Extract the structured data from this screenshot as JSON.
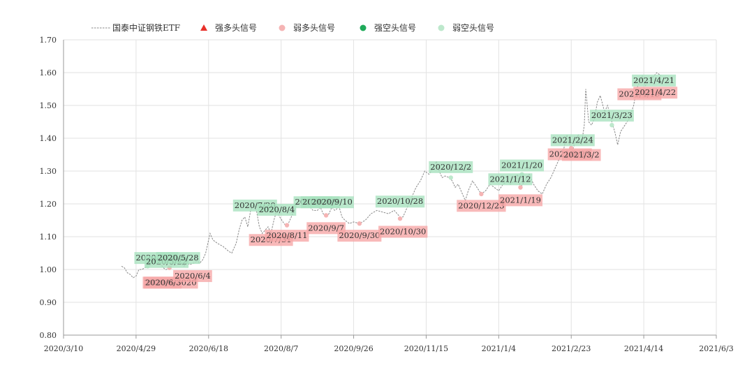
{
  "chart_data": {
    "type": "line",
    "legend": {
      "placement": "top-left",
      "items": [
        {
          "label": "国泰中证钢铁ETF",
          "marker": "dashed-line",
          "color": "#888888"
        },
        {
          "label": "强多头信号",
          "marker": "triangle",
          "color": "#e8302a"
        },
        {
          "label": "弱多头信号",
          "marker": "circle",
          "color": "#f5b4b4"
        },
        {
          "label": "强空头信号",
          "marker": "circle",
          "color": "#1faa5a"
        },
        {
          "label": "弱空头信号",
          "marker": "circle",
          "color": "#bde8cc"
        }
      ]
    },
    "colors": {
      "line": "#888888",
      "bull_box": "#f6a8a8",
      "bear_box": "#a9e2bf",
      "grid": "#e2e2e2"
    },
    "x_axis": {
      "type": "date",
      "range": [
        "2020-03-10",
        "2021-06-03"
      ],
      "tick_labels": [
        "2020/3/10",
        "2020/4/29",
        "2020/6/18",
        "2020/8/7",
        "2020/9/26",
        "2020/11/15",
        "2021/1/4",
        "2021/2/23",
        "2021/4/14",
        "2021/6/3"
      ],
      "tick_dates": [
        "2020-03-10",
        "2020-04-29",
        "2020-06-18",
        "2020-08-07",
        "2020-09-26",
        "2020-11-15",
        "2021-01-04",
        "2021-02-23",
        "2021-04-14",
        "2021-06-03"
      ]
    },
    "y_axis": {
      "range": [
        0.8,
        1.7
      ],
      "tick_labels": [
        "0.80",
        "0.90",
        "1.00",
        "1.10",
        "1.20",
        "1.30",
        "1.40",
        "1.50",
        "1.60",
        "1.70"
      ],
      "tick_values": [
        0.8,
        0.9,
        1.0,
        1.1,
        1.2,
        1.3,
        1.4,
        1.5,
        1.6,
        1.7
      ],
      "grid": true
    },
    "x_grid": true,
    "series": [
      {
        "name": "国泰中证钢铁ETF",
        "points": [
          [
            "2020-04-19",
            1.01
          ],
          [
            "2020-04-21",
            1.005
          ],
          [
            "2020-04-23",
            0.99
          ],
          [
            "2020-04-25",
            0.985
          ],
          [
            "2020-04-27",
            0.975
          ],
          [
            "2020-04-29",
            0.98
          ],
          [
            "2020-05-01",
            1.0
          ],
          [
            "2020-05-03",
            1.0
          ],
          [
            "2020-05-05",
            1.005
          ],
          [
            "2020-05-07",
            1.01
          ],
          [
            "2020-05-09",
            1.015
          ],
          [
            "2020-05-11",
            1.025
          ],
          [
            "2020-05-13",
            1.03
          ],
          [
            "2020-05-15",
            1.02
          ],
          [
            "2020-05-17",
            1.01
          ],
          [
            "2020-05-19",
            1.0
          ],
          [
            "2020-05-20",
            1.0
          ],
          [
            "2020-05-22",
            1.005
          ],
          [
            "2020-05-24",
            1.015
          ],
          [
            "2020-05-26",
            1.02
          ],
          [
            "2020-05-28",
            1.03
          ],
          [
            "2020-05-30",
            1.02
          ],
          [
            "2020-06-01",
            1.01
          ],
          [
            "2020-06-03",
            1.02
          ],
          [
            "2020-06-05",
            1.015
          ],
          [
            "2020-06-08",
            1.02
          ],
          [
            "2020-06-10",
            1.025
          ],
          [
            "2020-06-12",
            1.02
          ],
          [
            "2020-06-14",
            1.03
          ],
          [
            "2020-06-16",
            1.05
          ],
          [
            "2020-06-18",
            1.09
          ],
          [
            "2020-06-19",
            1.11
          ],
          [
            "2020-06-21",
            1.09
          ],
          [
            "2020-06-24",
            1.08
          ],
          [
            "2020-06-28",
            1.07
          ],
          [
            "2020-07-02",
            1.055
          ],
          [
            "2020-07-04",
            1.05
          ],
          [
            "2020-07-07",
            1.08
          ],
          [
            "2020-07-09",
            1.12
          ],
          [
            "2020-07-11",
            1.15
          ],
          [
            "2020-07-13",
            1.16
          ],
          [
            "2020-07-15",
            1.13
          ],
          [
            "2020-07-17",
            1.18
          ],
          [
            "2020-07-19",
            1.2
          ],
          [
            "2020-07-21",
            1.18
          ],
          [
            "2020-07-23",
            1.13
          ],
          [
            "2020-07-25",
            1.11
          ],
          [
            "2020-07-27",
            1.12
          ],
          [
            "2020-07-29",
            1.13
          ],
          [
            "2020-07-31",
            1.11
          ],
          [
            "2020-08-02",
            1.15
          ],
          [
            "2020-08-04",
            1.18
          ],
          [
            "2020-08-06",
            1.16
          ],
          [
            "2020-08-09",
            1.14
          ],
          [
            "2020-08-11",
            1.13
          ],
          [
            "2020-08-13",
            1.15
          ],
          [
            "2020-08-15",
            1.17
          ],
          [
            "2020-08-17",
            1.19
          ],
          [
            "2020-08-19",
            1.21
          ],
          [
            "2020-08-21",
            1.2
          ],
          [
            "2020-08-23",
            1.19
          ],
          [
            "2020-08-25",
            1.2
          ],
          [
            "2020-08-27",
            1.19
          ],
          [
            "2020-08-29",
            1.18
          ],
          [
            "2020-09-01",
            1.18
          ],
          [
            "2020-09-03",
            1.19
          ],
          [
            "2020-09-05",
            1.17
          ],
          [
            "2020-09-07",
            1.16
          ],
          [
            "2020-09-09",
            1.17
          ],
          [
            "2020-09-11",
            1.19
          ],
          [
            "2020-09-13",
            1.18
          ],
          [
            "2020-09-16",
            1.19
          ],
          [
            "2020-09-18",
            1.16
          ],
          [
            "2020-09-20",
            1.15
          ],
          [
            "2020-09-23",
            1.14
          ],
          [
            "2020-09-26",
            1.145
          ],
          [
            "2020-09-30",
            1.14
          ],
          [
            "2020-10-04",
            1.15
          ],
          [
            "2020-10-08",
            1.17
          ],
          [
            "2020-10-12",
            1.18
          ],
          [
            "2020-10-16",
            1.175
          ],
          [
            "2020-10-20",
            1.17
          ],
          [
            "2020-10-24",
            1.18
          ],
          [
            "2020-10-28",
            1.16
          ],
          [
            "2020-10-30",
            1.16
          ],
          [
            "2020-11-02",
            1.19
          ],
          [
            "2020-11-05",
            1.22
          ],
          [
            "2020-11-08",
            1.25
          ],
          [
            "2020-11-11",
            1.27
          ],
          [
            "2020-11-14",
            1.3
          ],
          [
            "2020-11-17",
            1.29
          ],
          [
            "2020-11-20",
            1.31
          ],
          [
            "2020-11-22",
            1.33
          ],
          [
            "2020-11-24",
            1.3
          ],
          [
            "2020-11-26",
            1.28
          ],
          [
            "2020-11-28",
            1.285
          ],
          [
            "2020-12-01",
            1.28
          ],
          [
            "2020-12-03",
            1.27
          ],
          [
            "2020-12-05",
            1.25
          ],
          [
            "2020-12-07",
            1.26
          ],
          [
            "2020-12-10",
            1.23
          ],
          [
            "2020-12-12",
            1.21
          ],
          [
            "2020-12-14",
            1.24
          ],
          [
            "2020-12-17",
            1.27
          ],
          [
            "2020-12-20",
            1.25
          ],
          [
            "2020-12-23",
            1.23
          ],
          [
            "2020-12-26",
            1.24
          ],
          [
            "2020-12-29",
            1.26
          ],
          [
            "2021-01-01",
            1.25
          ],
          [
            "2021-01-04",
            1.24
          ],
          [
            "2021-01-07",
            1.26
          ],
          [
            "2021-01-10",
            1.27
          ],
          [
            "2021-01-12",
            1.26
          ],
          [
            "2021-01-15",
            1.27
          ],
          [
            "2021-01-17",
            1.29
          ],
          [
            "2021-01-19",
            1.25
          ],
          [
            "2021-01-22",
            1.27
          ],
          [
            "2021-01-25",
            1.29
          ],
          [
            "2021-01-28",
            1.26
          ],
          [
            "2021-01-31",
            1.24
          ],
          [
            "2021-02-03",
            1.23
          ],
          [
            "2021-02-06",
            1.26
          ],
          [
            "2021-02-09",
            1.28
          ],
          [
            "2021-02-12",
            1.31
          ],
          [
            "2021-02-15",
            1.34
          ],
          [
            "2021-02-18",
            1.37
          ],
          [
            "2021-02-20",
            1.41
          ],
          [
            "2021-02-22",
            1.38
          ],
          [
            "2021-02-24",
            1.36
          ],
          [
            "2021-02-26",
            1.4
          ],
          [
            "2021-02-28",
            1.41
          ],
          [
            "2021-03-02",
            1.38
          ],
          [
            "2021-03-04",
            1.44
          ],
          [
            "2021-03-05",
            1.55
          ],
          [
            "2021-03-07",
            1.45
          ],
          [
            "2021-03-09",
            1.44
          ],
          [
            "2021-03-11",
            1.46
          ],
          [
            "2021-03-13",
            1.51
          ],
          [
            "2021-03-15",
            1.53
          ],
          [
            "2021-03-18",
            1.48
          ],
          [
            "2021-03-20",
            1.5
          ],
          [
            "2021-03-23",
            1.45
          ],
          [
            "2021-03-25",
            1.42
          ],
          [
            "2021-03-27",
            1.38
          ],
          [
            "2021-03-29",
            1.42
          ],
          [
            "2021-04-01",
            1.44
          ],
          [
            "2021-04-04",
            1.46
          ],
          [
            "2021-04-07",
            1.5
          ],
          [
            "2021-04-09",
            1.55
          ],
          [
            "2021-04-11",
            1.57
          ],
          [
            "2021-04-13",
            1.59
          ],
          [
            "2021-04-15",
            1.56
          ],
          [
            "2021-04-17",
            1.57
          ],
          [
            "2021-04-19",
            1.58
          ],
          [
            "2021-04-21",
            1.59
          ],
          [
            "2021-04-23",
            1.6
          ],
          [
            "2021-04-26",
            1.59
          ]
        ]
      }
    ],
    "annotations": [
      {
        "label": "2020/5/20",
        "kind": "bear",
        "date": "2020-05-13",
        "value": 1.036
      },
      {
        "label": "2020/5/22",
        "kind": "bear",
        "date": "2020-05-20",
        "value": 1.024
      },
      {
        "label": "2020/5/28",
        "kind": "bear",
        "date": "2020-05-28",
        "value": 1.036
      },
      {
        "label": "2020/6/3",
        "kind": "bull",
        "date": "2020-05-17",
        "value": 0.961
      },
      {
        "label": "2020/6/3020",
        "kind": "bull",
        "date": "2020-05-23",
        "value": 0.961
      },
      {
        "label": "2020/6/4",
        "kind": "bull",
        "date": "2020-06-07",
        "value": 0.981
      },
      {
        "label": "2020/7/20",
        "kind": "bear",
        "date": "2020-07-20",
        "value": 1.196
      },
      {
        "label": "2020/8/4",
        "kind": "bear",
        "date": "2020-08-04",
        "value": 1.183
      },
      {
        "label": "2020/7/31",
        "kind": "bull",
        "date": "2020-07-31",
        "value": 1.091
      },
      {
        "label": "2020/8/11",
        "kind": "bull",
        "date": "2020-08-11",
        "value": 1.104
      },
      {
        "label": "2020/8/4",
        "kind": "bear",
        "date": "2020-08-29",
        "value": 1.206
      },
      {
        "label": "2020/8/9",
        "kind": "bear",
        "date": "2020-09-03",
        "value": 1.206
      },
      {
        "label": "2020/9/10",
        "kind": "bear",
        "date": "2020-09-11",
        "value": 1.206
      },
      {
        "label": "2020/9/7",
        "kind": "bull",
        "date": "2020-09-07",
        "value": 1.127
      },
      {
        "label": "2020/9/30",
        "kind": "bull",
        "date": "2020-09-30",
        "value": 1.104
      },
      {
        "label": "2020/10/28",
        "kind": "bear",
        "date": "2020-10-28",
        "value": 1.208
      },
      {
        "label": "2020/10/30",
        "kind": "bull",
        "date": "2020-10-30",
        "value": 1.116
      },
      {
        "label": "2020/12/2",
        "kind": "bear",
        "date": "2020-12-02",
        "value": 1.313
      },
      {
        "label": "2020/12/23",
        "kind": "bull",
        "date": "2020-12-23",
        "value": 1.195
      },
      {
        "label": "2021/1/20",
        "kind": "bear",
        "date": "2021-01-20",
        "value": 1.318
      },
      {
        "label": "2021/1/12",
        "kind": "bear",
        "date": "2021-01-12",
        "value": 1.276
      },
      {
        "label": "2021/1/19",
        "kind": "bull",
        "date": "2021-01-19",
        "value": 1.212
      },
      {
        "label": "2021/2/24",
        "kind": "bear",
        "date": "2021-02-24",
        "value": 1.395
      },
      {
        "label": "2021/2/23",
        "kind": "bull",
        "date": "2021-02-22",
        "value": 1.352
      },
      {
        "label": "2021/3/2",
        "kind": "bull",
        "date": "2021-03-02",
        "value": 1.35
      },
      {
        "label": "2021/3/23",
        "kind": "bear",
        "date": "2021-03-23",
        "value": 1.47
      },
      {
        "label": "2021/4/21",
        "kind": "bear",
        "date": "2021-04-21",
        "value": 1.577
      },
      {
        "label": "2021/4/19",
        "kind": "bull",
        "date": "2021-04-11",
        "value": 1.535
      },
      {
        "label": "2021/4/22",
        "kind": "bull",
        "date": "2021-04-22",
        "value": 1.54
      }
    ],
    "signal_markers": [
      {
        "kind": "weak-bear",
        "date": "2020-05-07",
        "value": 1.01
      },
      {
        "kind": "weak-bull",
        "date": "2020-05-22",
        "value": 1.005
      },
      {
        "kind": "weak-bull",
        "date": "2020-08-11",
        "value": 1.135
      },
      {
        "kind": "weak-bull",
        "date": "2020-09-07",
        "value": 1.165
      },
      {
        "kind": "weak-bull",
        "date": "2020-09-30",
        "value": 1.14
      },
      {
        "kind": "weak-bull",
        "date": "2020-10-28",
        "value": 1.155
      },
      {
        "kind": "weak-bear",
        "date": "2020-12-02",
        "value": 1.28
      },
      {
        "kind": "weak-bull",
        "date": "2020-12-23",
        "value": 1.23
      },
      {
        "kind": "weak-bull",
        "date": "2021-01-19",
        "value": 1.25
      },
      {
        "kind": "weak-bear",
        "date": "2021-01-20",
        "value": 1.29
      },
      {
        "kind": "weak-bull",
        "date": "2021-02-23",
        "value": 1.37
      },
      {
        "kind": "weak-bear",
        "date": "2021-03-23",
        "value": 1.44
      }
    ]
  }
}
